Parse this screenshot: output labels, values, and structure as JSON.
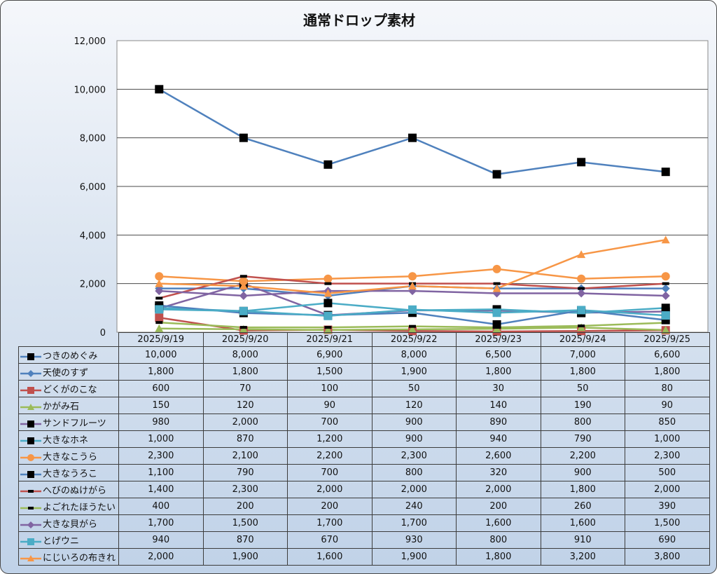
{
  "chart_data": {
    "type": "line",
    "title": "通常ドロップ素材",
    "xlabel": "",
    "ylabel": "",
    "ylim": [
      0,
      12000
    ],
    "yticks": [
      "0",
      "2,000",
      "4,000",
      "6,000",
      "8,000",
      "10,000",
      "12,000"
    ],
    "grid": true,
    "legend": "data-table-left",
    "categories": [
      "2025/9/19",
      "2025/9/20",
      "2025/9/21",
      "2025/9/22",
      "2025/9/23",
      "2025/9/24",
      "2025/9/25"
    ],
    "series": [
      {
        "name": "つきのめぐみ",
        "color": "#4f81bd",
        "marker": "square-black",
        "values": [
          10000,
          8000,
          6900,
          8000,
          6500,
          7000,
          6600
        ],
        "labels": [
          "10,000",
          "8,000",
          "6,900",
          "8,000",
          "6,500",
          "7,000",
          "6,600"
        ]
      },
      {
        "name": "天使のすず",
        "color": "#4f81bd",
        "marker": "diamond",
        "values": [
          1800,
          1800,
          1500,
          1900,
          1800,
          1800,
          1800
        ],
        "labels": [
          "1,800",
          "1,800",
          "1,500",
          "1,900",
          "1,800",
          "1,800",
          "1,800"
        ]
      },
      {
        "name": "どくがのこな",
        "color": "#c0504d",
        "marker": "square",
        "values": [
          600,
          70,
          100,
          50,
          30,
          50,
          80
        ],
        "labels": [
          "600",
          "70",
          "100",
          "50",
          "30",
          "50",
          "80"
        ]
      },
      {
        "name": "かがみ石",
        "color": "#9bbb59",
        "marker": "triangle",
        "values": [
          150,
          120,
          90,
          120,
          140,
          190,
          90
        ],
        "labels": [
          "150",
          "120",
          "90",
          "120",
          "140",
          "190",
          "90"
        ]
      },
      {
        "name": "サンドフルーツ",
        "color": "#8064a2",
        "marker": "square-black",
        "values": [
          980,
          2000,
          700,
          900,
          890,
          800,
          850
        ],
        "labels": [
          "980",
          "2,000",
          "700",
          "900",
          "890",
          "800",
          "850"
        ]
      },
      {
        "name": "大きなホネ",
        "color": "#4bacc6",
        "marker": "square-black",
        "values": [
          1000,
          870,
          1200,
          900,
          940,
          790,
          1000
        ],
        "labels": [
          "1,000",
          "870",
          "1,200",
          "900",
          "940",
          "790",
          "1,000"
        ]
      },
      {
        "name": "大きなこうら",
        "color": "#f79646",
        "marker": "circle",
        "values": [
          2300,
          2100,
          2200,
          2300,
          2600,
          2200,
          2300
        ],
        "labels": [
          "2,300",
          "2,100",
          "2,200",
          "2,300",
          "2,600",
          "2,200",
          "2,300"
        ]
      },
      {
        "name": "大きなうろこ",
        "color": "#4f81bd",
        "marker": "square-black",
        "values": [
          1100,
          790,
          700,
          800,
          320,
          900,
          500
        ],
        "labels": [
          "1,100",
          "790",
          "700",
          "800",
          "320",
          "900",
          "500"
        ]
      },
      {
        "name": "へびのぬけがら",
        "color": "#c0504d",
        "marker": "dash-black",
        "values": [
          1400,
          2300,
          2000,
          2000,
          2000,
          1800,
          2000
        ],
        "labels": [
          "1,400",
          "2,300",
          "2,000",
          "2,000",
          "2,000",
          "1,800",
          "2,000"
        ]
      },
      {
        "name": "よごれたほうたい",
        "color": "#9bbb59",
        "marker": "dash-black",
        "values": [
          400,
          200,
          200,
          240,
          200,
          260,
          390
        ],
        "labels": [
          "400",
          "200",
          "200",
          "240",
          "200",
          "260",
          "390"
        ]
      },
      {
        "name": "大きな貝がら",
        "color": "#8064a2",
        "marker": "diamond",
        "values": [
          1700,
          1500,
          1700,
          1700,
          1600,
          1600,
          1500
        ],
        "labels": [
          "1,700",
          "1,500",
          "1,700",
          "1,700",
          "1,600",
          "1,600",
          "1,500"
        ]
      },
      {
        "name": "とげウニ",
        "color": "#4bacc6",
        "marker": "square",
        "values": [
          940,
          870,
          670,
          930,
          800,
          910,
          690
        ],
        "labels": [
          "940",
          "870",
          "670",
          "930",
          "800",
          "910",
          "690"
        ]
      },
      {
        "name": "にじいろの布きれ",
        "color": "#f79646",
        "marker": "triangle",
        "values": [
          2000,
          1900,
          1600,
          1900,
          1800,
          3200,
          3800
        ],
        "labels": [
          "2,000",
          "1,900",
          "1,600",
          "1,900",
          "1,800",
          "3,200",
          "3,800"
        ]
      }
    ]
  }
}
